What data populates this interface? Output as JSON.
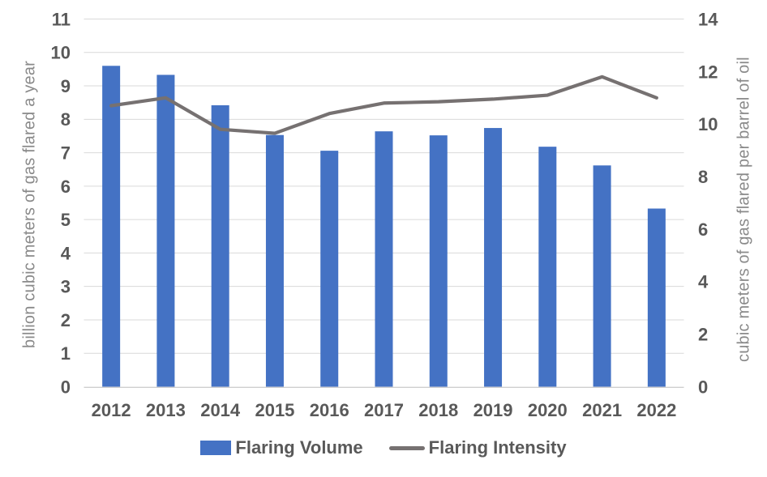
{
  "chart_data": {
    "type": "combo-bar-line",
    "categories": [
      "2012",
      "2013",
      "2014",
      "2015",
      "2016",
      "2017",
      "2018",
      "2019",
      "2020",
      "2021",
      "2022"
    ],
    "series": [
      {
        "name": "Flaring Volume",
        "type": "bar",
        "axis": "left",
        "color": "#4472C4",
        "values": [
          9.6,
          9.33,
          8.42,
          7.53,
          7.06,
          7.64,
          7.52,
          7.74,
          7.18,
          6.62,
          5.33
        ]
      },
      {
        "name": "Flaring Intensity",
        "type": "line",
        "axis": "right",
        "color": "#767171",
        "values": [
          10.7,
          11.0,
          9.8,
          9.65,
          10.4,
          10.8,
          10.85,
          10.95,
          11.1,
          11.8,
          11.0
        ]
      }
    ],
    "left_axis": {
      "title": "billion cubic meters of gas flared a year",
      "min": 0,
      "max": 11,
      "step": 1,
      "tick_labels": [
        "0",
        "1",
        "2",
        "3",
        "4",
        "5",
        "6",
        "7",
        "8",
        "9",
        "10",
        "11"
      ]
    },
    "right_axis": {
      "title": "cubic meters of gas flared per barrel of oil",
      "min": 0,
      "max": 14,
      "step": 2,
      "tick_labels": [
        "0",
        "2",
        "4",
        "6",
        "8",
        "10",
        "12",
        "14"
      ]
    },
    "grid": "horizontal",
    "legend_position": "bottom"
  },
  "styles": {
    "bar_color": "#4472C4",
    "line_color": "#767171",
    "tick_label_color": "#595959",
    "axis_title_color": "#8A8A8A",
    "gridline_color": "#D9D9D9",
    "axis_line_color": "#CFCFCF",
    "background": "#FFFFFF"
  }
}
